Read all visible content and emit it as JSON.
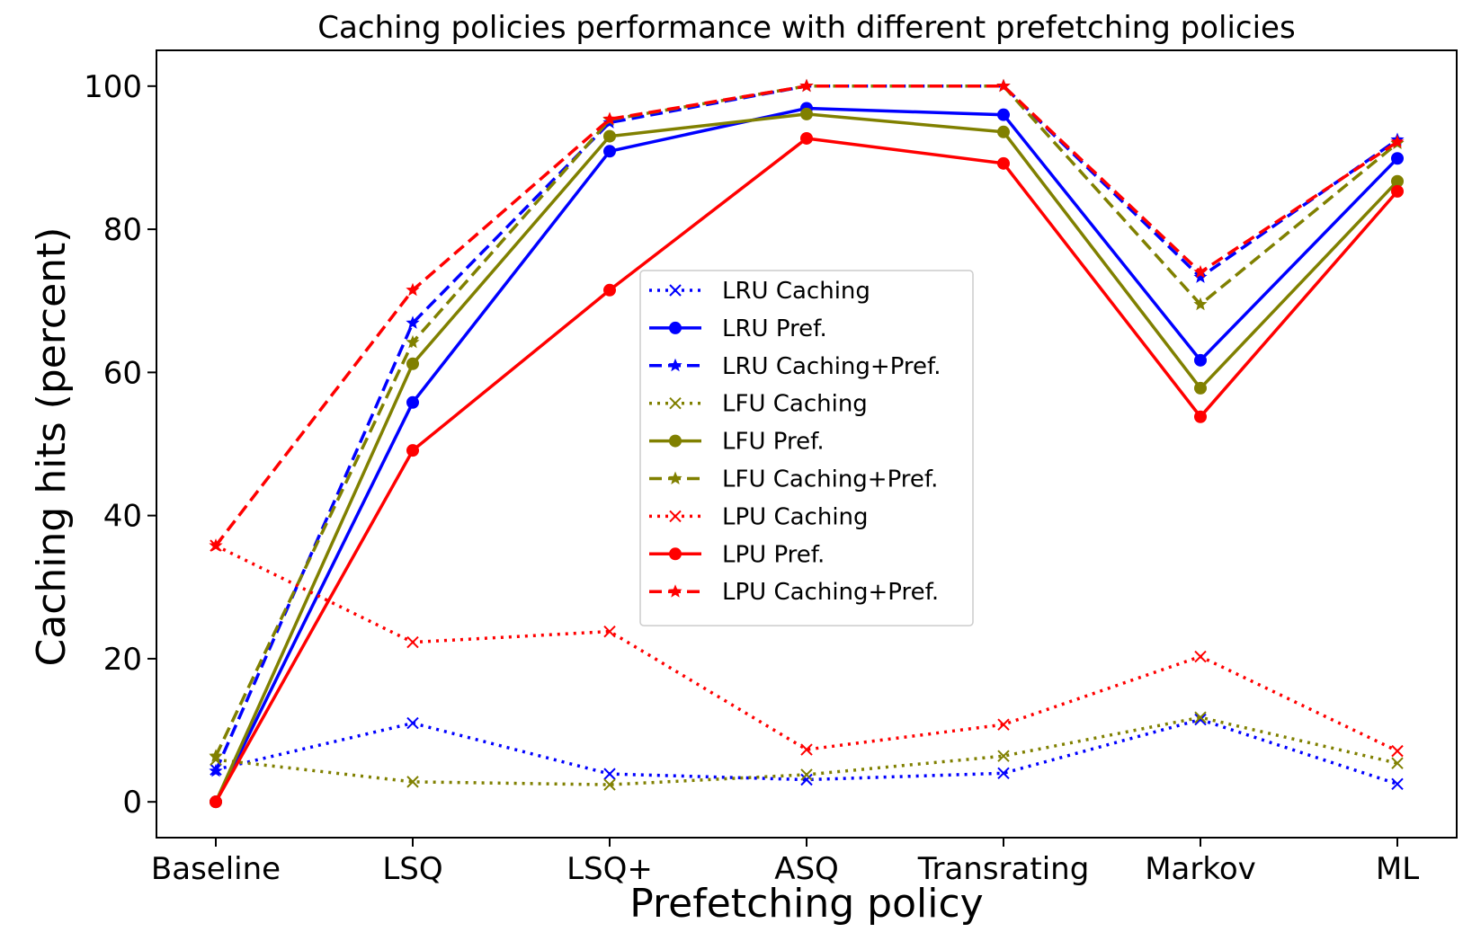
{
  "chart_data": {
    "type": "line",
    "title": "Caching policies performance with different prefetching policies",
    "xlabel": "Prefetching policy",
    "ylabel": "Caching hits (percent)",
    "categories": [
      "Baseline",
      "LSQ",
      "LSQ+",
      "ASQ",
      "Transrating",
      "Markov",
      "ML"
    ],
    "ylim": [
      -5,
      105
    ],
    "yticks": [
      0,
      20,
      40,
      60,
      80,
      100
    ],
    "grid": false,
    "legend_position": "center",
    "series": [
      {
        "name": "LRU Caching",
        "color": "#0000ff",
        "style": "dotted",
        "marker": "x",
        "values": [
          4.5,
          11.0,
          3.9,
          3.1,
          4.0,
          11.5,
          2.5
        ]
      },
      {
        "name": "LRU Pref.",
        "color": "#0000ff",
        "style": "solid",
        "marker": "circle",
        "values": [
          0,
          55.8,
          90.9,
          96.9,
          96.0,
          61.7,
          89.9
        ]
      },
      {
        "name": "LRU Caching+Pref.",
        "color": "#0000ff",
        "style": "dashed",
        "marker": "star",
        "values": [
          4.3,
          66.9,
          94.9,
          100,
          100,
          73.3,
          92.5
        ]
      },
      {
        "name": "LFU Caching",
        "color": "#808000",
        "style": "dotted",
        "marker": "x",
        "values": [
          5.9,
          2.8,
          2.4,
          3.8,
          6.4,
          11.8,
          5.4
        ]
      },
      {
        "name": "LFU Pref.",
        "color": "#808000",
        "style": "solid",
        "marker": "circle",
        "values": [
          0,
          61.2,
          93.0,
          96.1,
          93.6,
          57.8,
          86.7
        ]
      },
      {
        "name": "LFU Caching+Pref.",
        "color": "#808000",
        "style": "dashed",
        "marker": "star",
        "values": [
          6.4,
          64.2,
          95.3,
          100,
          100,
          69.5,
          92.0
        ]
      },
      {
        "name": "LPU Caching",
        "color": "#ff0000",
        "style": "dotted",
        "marker": "x",
        "values": [
          35.8,
          22.3,
          23.8,
          7.3,
          10.8,
          20.3,
          7.1
        ]
      },
      {
        "name": "LPU Pref.",
        "color": "#ff0000",
        "style": "solid",
        "marker": "circle",
        "values": [
          0,
          49.1,
          71.5,
          92.7,
          89.2,
          53.8,
          85.3
        ]
      },
      {
        "name": "LPU Caching+Pref.",
        "color": "#ff0000",
        "style": "dashed",
        "marker": "star",
        "values": [
          35.8,
          71.5,
          95.4,
          100,
          100,
          74.0,
          92.2
        ]
      }
    ]
  }
}
